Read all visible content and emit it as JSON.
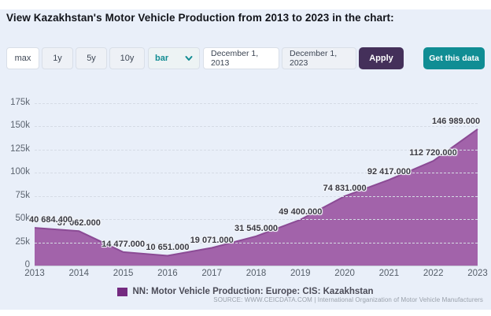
{
  "header": {
    "title": "View Kazakhstan's Motor Vehicle Production from 2013 to 2023 in the chart:"
  },
  "toolbar": {
    "range_buttons": [
      {
        "label": "max",
        "active": true
      },
      {
        "label": "1y",
        "active": false
      },
      {
        "label": "5y",
        "active": false
      },
      {
        "label": "10y",
        "active": false
      }
    ],
    "chart_type_select": {
      "value": "bar"
    },
    "date_from": "December 1, 2013",
    "date_to": "December 1, 2023",
    "apply_label": "Apply",
    "get_data_label": "Get this data"
  },
  "chart_data": {
    "type": "area",
    "categories": [
      "2013",
      "2014",
      "2015",
      "2016",
      "2017",
      "2018",
      "2019",
      "2020",
      "2021",
      "2022",
      "2023"
    ],
    "values": [
      40684.4,
      37062,
      14477,
      10651,
      19071,
      31545,
      49400,
      74831,
      92417,
      112720,
      146989
    ],
    "point_labels": [
      "40 684.400",
      "37 062.000",
      "14 477.000",
      "10 651.000",
      "19 071.000",
      "31 545.000",
      "49 400.000",
      "74 831.000",
      "92 417.000",
      "112 720.000",
      "146 989.000"
    ],
    "yticks": [
      {
        "v": 0,
        "label": "0"
      },
      {
        "v": 25000,
        "label": "25k"
      },
      {
        "v": 50000,
        "label": "50k"
      },
      {
        "v": 75000,
        "label": "75k"
      },
      {
        "v": 100000,
        "label": "100k"
      },
      {
        "v": 125000,
        "label": "125k"
      },
      {
        "v": 150000,
        "label": "150k"
      },
      {
        "v": 175000,
        "label": "175k"
      }
    ],
    "ylim": [
      0,
      180000
    ],
    "grid": true,
    "legend_position": "bottom",
    "series_name": "NN: Motor Vehicle Production: Europe: CIS: Kazakhstan",
    "colors": {
      "area_fill": "#a263aa",
      "area_line": "#8b4b95",
      "legend_swatch": "#742a80",
      "accent_teal": "#108d94",
      "accent_purple": "#44305a"
    }
  },
  "footer": {
    "source": "SOURCE: WWW.CEICDATA.COM | International Organization of Motor Vehicle Manufacturers"
  }
}
